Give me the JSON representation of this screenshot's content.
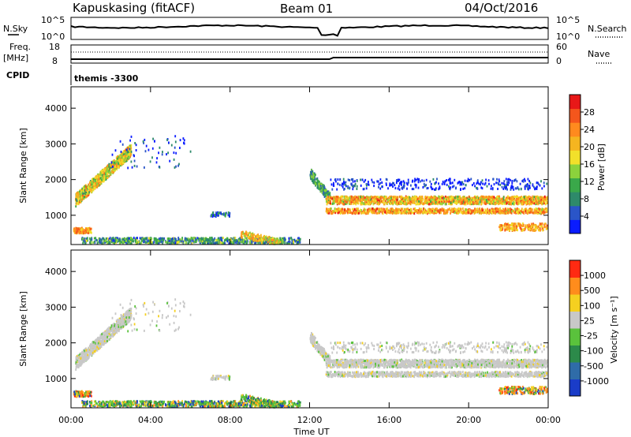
{
  "header": {
    "station": "Kapuskasing (fitACF)",
    "beam": "Beam 01",
    "date": "04/Oct/2016"
  },
  "sky_panel": {
    "left_label": "N.Sky",
    "left_ticks": [
      "10^5",
      "10^0"
    ],
    "right_label": "N.Search",
    "right_ticks": [
      "10^5",
      "10^0"
    ]
  },
  "freq_panel": {
    "left_label": "Freq.",
    "left_unit": "[MHz]",
    "left_ticks": [
      "18",
      "8"
    ],
    "right_label": "Nave",
    "right_ticks": [
      "60",
      "0"
    ]
  },
  "cpid": {
    "label": "CPID",
    "value": "themis -3300"
  },
  "chart_data": [
    {
      "type": "heatmap",
      "name": "power",
      "xlabel": "",
      "ylabel": "Slant Range [km]",
      "xlim": [
        0,
        24
      ],
      "ylim": [
        180,
        4600
      ],
      "yticks": [
        1000,
        2000,
        3000,
        4000
      ],
      "colorbar": {
        "label": "Power [dB]",
        "ticks": [
          "4",
          "8",
          "12",
          "16",
          "20",
          "24",
          "28"
        ],
        "colors": [
          "#0a1cff",
          "#2a55c8",
          "#2e8a6a",
          "#3aa84a",
          "#8cd23c",
          "#f2e02a",
          "#f5b520",
          "#ff8a1e",
          "#f4561c",
          "#e81818"
        ]
      }
    },
    {
      "type": "heatmap",
      "name": "velocity",
      "xlabel": "Time UT",
      "ylabel": "Slant Range [km]",
      "xlim": [
        0,
        24
      ],
      "ylim": [
        180,
        4600
      ],
      "yticks": [
        1000,
        2000,
        3000,
        4000
      ],
      "xticks": [
        "00:00",
        "04:00",
        "08:00",
        "12:00",
        "16:00",
        "20:00",
        "00:00"
      ],
      "colorbar": {
        "label": "Velocity [m s⁻¹]",
        "ticks": [
          "1000",
          "500",
          "100",
          "25",
          "-25",
          "-100",
          "-500",
          "-1000"
        ],
        "colors": [
          "#1a3cc8",
          "#2f6ca8",
          "#2c8a4a",
          "#5ac23c",
          "#c8c8c8",
          "#f5d020",
          "#ff8c1c",
          "#ff2a12"
        ]
      }
    }
  ]
}
